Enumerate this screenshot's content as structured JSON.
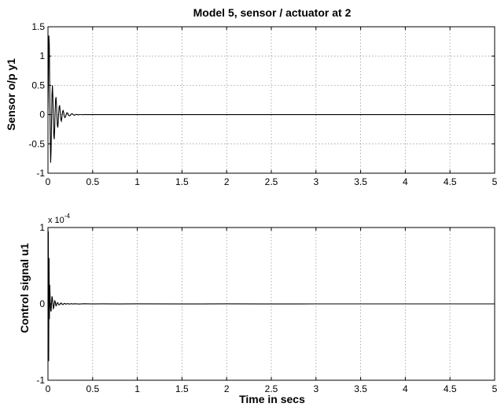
{
  "chart_data": [
    {
      "type": "line",
      "title": "Model 5, sensor / actuator at 2",
      "xlabel": "",
      "ylabel": "Sensor o/p y1",
      "xlim": [
        0,
        5
      ],
      "ylim": [
        -1,
        1.5
      ],
      "xticks": [
        0,
        0.5,
        1,
        1.5,
        2,
        2.5,
        3,
        3.5,
        4,
        4.5,
        5
      ],
      "xtick_labels": [
        "0",
        "0.5",
        "1",
        "1.5",
        "2",
        "2.5",
        "3",
        "3.5",
        "4",
        "4.5",
        "5"
      ],
      "yticks": [
        -1,
        -0.5,
        0,
        0.5,
        1,
        1.5
      ],
      "ytick_labels": [
        "-1",
        "-0.5",
        "0",
        "0.5",
        "1",
        "1.5"
      ],
      "grid": true,
      "series": [
        {
          "color": "#000000",
          "x": [
            0,
            0.005,
            0.01,
            0.015,
            0.02,
            0.025,
            0.03,
            0.035,
            0.04,
            0.045,
            0.05,
            0.055,
            0.06,
            0.065,
            0.07,
            0.075,
            0.08,
            0.085,
            0.09,
            0.095,
            0.1,
            0.105,
            0.11,
            0.115,
            0.12,
            0.125,
            0.13,
            0.135,
            0.14,
            0.145,
            0.15,
            0.155,
            0.16,
            0.165,
            0.17,
            0.175,
            0.18,
            0.185,
            0.19,
            0.2,
            0.21,
            0.22,
            0.23,
            0.24,
            0.25,
            0.26,
            0.27,
            0.28,
            0.29,
            0.3,
            0.32,
            0.34,
            0.36,
            0.38,
            0.4,
            0.45,
            0.5,
            0.6,
            1,
            2,
            3,
            4,
            5
          ],
          "y": [
            0,
            0.6,
            1.35,
            1.2,
            0.4,
            -0.3,
            -0.82,
            -0.6,
            -0.1,
            0.35,
            0.5,
            0.3,
            -0.05,
            -0.35,
            -0.42,
            -0.25,
            0.05,
            0.25,
            0.3,
            0.18,
            -0.02,
            -0.18,
            -0.22,
            -0.12,
            0.03,
            0.13,
            0.16,
            0.09,
            -0.02,
            -0.09,
            -0.11,
            -0.06,
            0.01,
            0.06,
            0.07,
            0.04,
            -0.01,
            -0.04,
            -0.05,
            -0.02,
            0.03,
            0.03,
            -0.01,
            -0.02,
            -0.015,
            0.01,
            0.015,
            0.005,
            -0.01,
            -0.008,
            0.005,
            -0.004,
            0.003,
            -0.002,
            0.001,
            0,
            0,
            0,
            0,
            0,
            0,
            0,
            0
          ]
        }
      ]
    },
    {
      "type": "line",
      "title": "",
      "xlabel": "Time in secs",
      "ylabel": "Control signal u1",
      "y_multiplier": "x 10",
      "y_multiplier_exponent": "-4",
      "xlim": [
        0,
        5
      ],
      "ylim": [
        -1,
        1
      ],
      "xticks": [
        0,
        0.5,
        1,
        1.5,
        2,
        2.5,
        3,
        3.5,
        4,
        4.5,
        5
      ],
      "xtick_labels": [
        "0",
        "0.5",
        "1",
        "1.5",
        "2",
        "2.5",
        "3",
        "3.5",
        "4",
        "4.5",
        "5"
      ],
      "yticks": [
        -1,
        0,
        1
      ],
      "ytick_labels": [
        "-1",
        "0",
        "1"
      ],
      "grid": true,
      "series": [
        {
          "color": "#000000",
          "x": [
            0,
            0.004,
            0.008,
            0.012,
            0.016,
            0.02,
            0.025,
            0.03,
            0.035,
            0.04,
            0.045,
            0.05,
            0.055,
            0.06,
            0.065,
            0.07,
            0.075,
            0.08,
            0.085,
            0.09,
            0.095,
            0.1,
            0.11,
            0.12,
            0.13,
            0.14,
            0.15,
            0.16,
            0.17,
            0.18,
            0.19,
            0.2,
            0.22,
            0.24,
            0.26,
            0.28,
            0.3,
            0.35,
            0.4,
            0.5,
            0.6,
            0.8,
            1.0,
            1.5,
            2.0,
            2.4,
            3,
            4,
            5
          ],
          "y": [
            0,
            0.95,
            -0.75,
            0.6,
            -0.2,
            0.25,
            0.05,
            -0.08,
            -0.1,
            0.02,
            0.1,
            0.07,
            0.0,
            -0.06,
            -0.05,
            0.0,
            0.04,
            0.035,
            0.0,
            -0.025,
            -0.02,
            0.01,
            0.015,
            -0.01,
            -0.012,
            0.008,
            0.01,
            -0.006,
            -0.008,
            0.005,
            0.006,
            -0.004,
            0.004,
            -0.003,
            0.003,
            -0.002,
            0.002,
            -0.0015,
            0.0015,
            -0.001,
            0.001,
            -0.001,
            0.001,
            -0.0008,
            0.0008,
            -0.0005,
            0,
            0,
            0
          ]
        }
      ]
    }
  ]
}
